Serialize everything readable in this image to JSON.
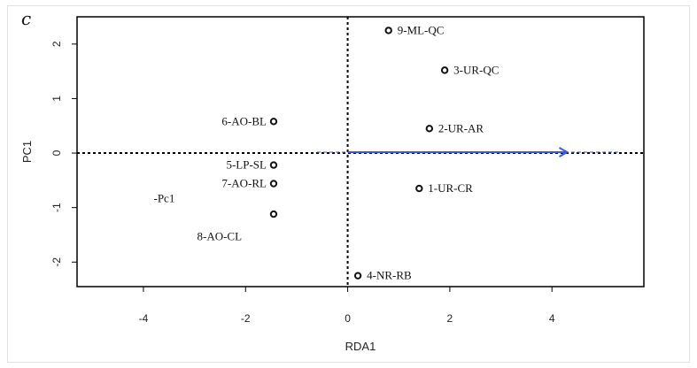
{
  "panel_label": "c",
  "chart_data": {
    "type": "scatter",
    "xlabel": "RDA1",
    "ylabel": "PC1",
    "xlim": [
      -5.3,
      5.8
    ],
    "ylim": [
      -2.45,
      2.5
    ],
    "xticks": [
      -4,
      -2,
      0,
      2,
      4
    ],
    "yticks": [
      -2,
      -1,
      0,
      1,
      2
    ],
    "grid": false,
    "points": [
      {
        "label": "9-ML-QC",
        "x": 0.8,
        "y": 2.25
      },
      {
        "label": "3-UR-QC",
        "x": 1.9,
        "y": 1.52
      },
      {
        "label": "2-UR-AR",
        "x": 1.6,
        "y": 0.45
      },
      {
        "label": "6-AO-BL",
        "x": -1.45,
        "y": 0.58
      },
      {
        "label": "5-LP-SL",
        "x": -1.45,
        "y": -0.22
      },
      {
        "label": "7-AO-RL",
        "x": -1.45,
        "y": -0.56
      },
      {
        "label": "",
        "x": -1.45,
        "y": -1.12
      },
      {
        "label": "1-UR-CR",
        "x": 1.4,
        "y": -0.65
      },
      {
        "label": "4-NR-RB",
        "x": 0.2,
        "y": -2.25
      }
    ],
    "annotations": [
      {
        "text": "-Pc1",
        "x": -3.8,
        "y": -0.9
      },
      {
        "text": "8-AO-CL",
        "x": -2.95,
        "y": -1.6
      }
    ],
    "arrow": {
      "x0": 0,
      "y0": 0,
      "x1": 4.3,
      "y1": 0,
      "color": "#3b5bdb"
    },
    "arrow_extension": {
      "x0": -0.6,
      "x1": 5.3,
      "color": "#3b5bdb"
    }
  }
}
